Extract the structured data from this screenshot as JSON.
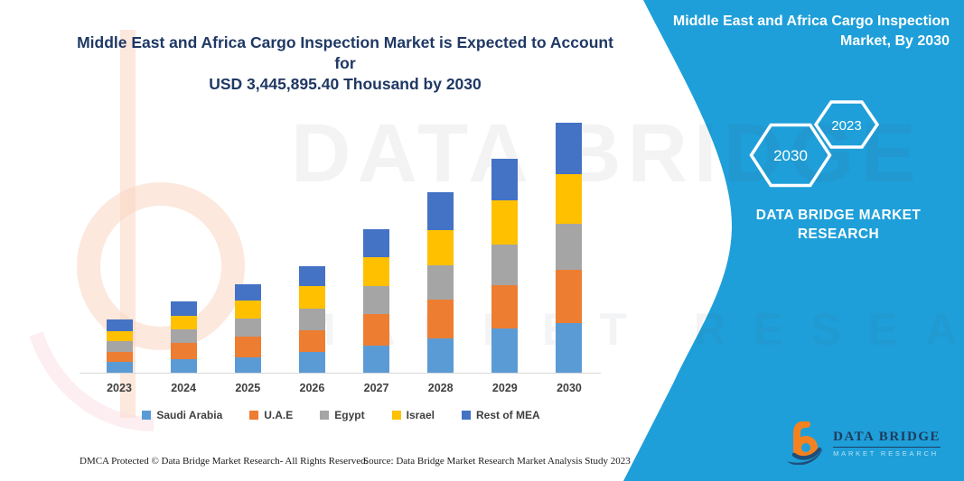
{
  "header": {
    "title_lines": [
      "Middle East and Africa Cargo Inspection Market is Expected to Account for",
      "USD 3,445,895.40 Thousand by 2030"
    ]
  },
  "side_panel": {
    "accent_color": "#1E9FD9",
    "title_lines": [
      "Middle East and Africa Cargo Inspection",
      "Market, By 2030"
    ],
    "hexagons": [
      "2030",
      "2023"
    ],
    "brand_lines": [
      "DATA BRIDGE MARKET",
      "RESEARCH"
    ]
  },
  "watermark": {
    "line1": "DATA BRIDGE",
    "line2": "MARKET RESEARCH"
  },
  "logo": {
    "name": "DATA BRIDGE",
    "subtitle": "MARKET RESEARCH"
  },
  "footer": {
    "dmca": "DMCA Protected © Data Bridge Market Research-  All Rights Reserved.",
    "source": "Source: Data Bridge Market Research  Market Analysis Study 2023"
  },
  "chart_data": {
    "type": "bar",
    "stacked": true,
    "title": "Middle East and Africa Cargo Inspection Market is Expected to Account for USD 3,445,895.40 Thousand by 2030",
    "unit": "USD Thousand",
    "value_axis_visible": false,
    "legend_position": "bottom",
    "annotation": "2030 total = USD 3,445,895.40 Thousand; segment values estimated from bar heights",
    "categories": [
      "2023",
      "2024",
      "2025",
      "2026",
      "2027",
      "2028",
      "2029",
      "2030"
    ],
    "series": [
      {
        "name": "Saudi Arabia",
        "color": "#5B9BD5",
        "values": [
          149600,
          183300,
          215700,
          286700,
          377700,
          477500,
          610900,
          681900
        ]
      },
      {
        "name": "U.A.E",
        "color": "#ED7D31",
        "values": [
          140900,
          224400,
          286700,
          303000,
          427600,
          527400,
          594700,
          739300
        ]
      },
      {
        "name": "Egypt",
        "color": "#A5A5A5",
        "values": [
          149600,
          190700,
          240600,
          299200,
          386500,
          477500,
          561000,
          632100
        ]
      },
      {
        "name": "Israel",
        "color": "#FFC000",
        "values": [
          133400,
          183300,
          253100,
          311700,
          402700,
          477500,
          610900,
          685700
        ]
      },
      {
        "name": "Rest of MEA",
        "color": "#4472C4",
        "values": [
          158300,
          199500,
          228100,
          270500,
          386500,
          532300,
          573500,
          706900
        ]
      }
    ]
  }
}
